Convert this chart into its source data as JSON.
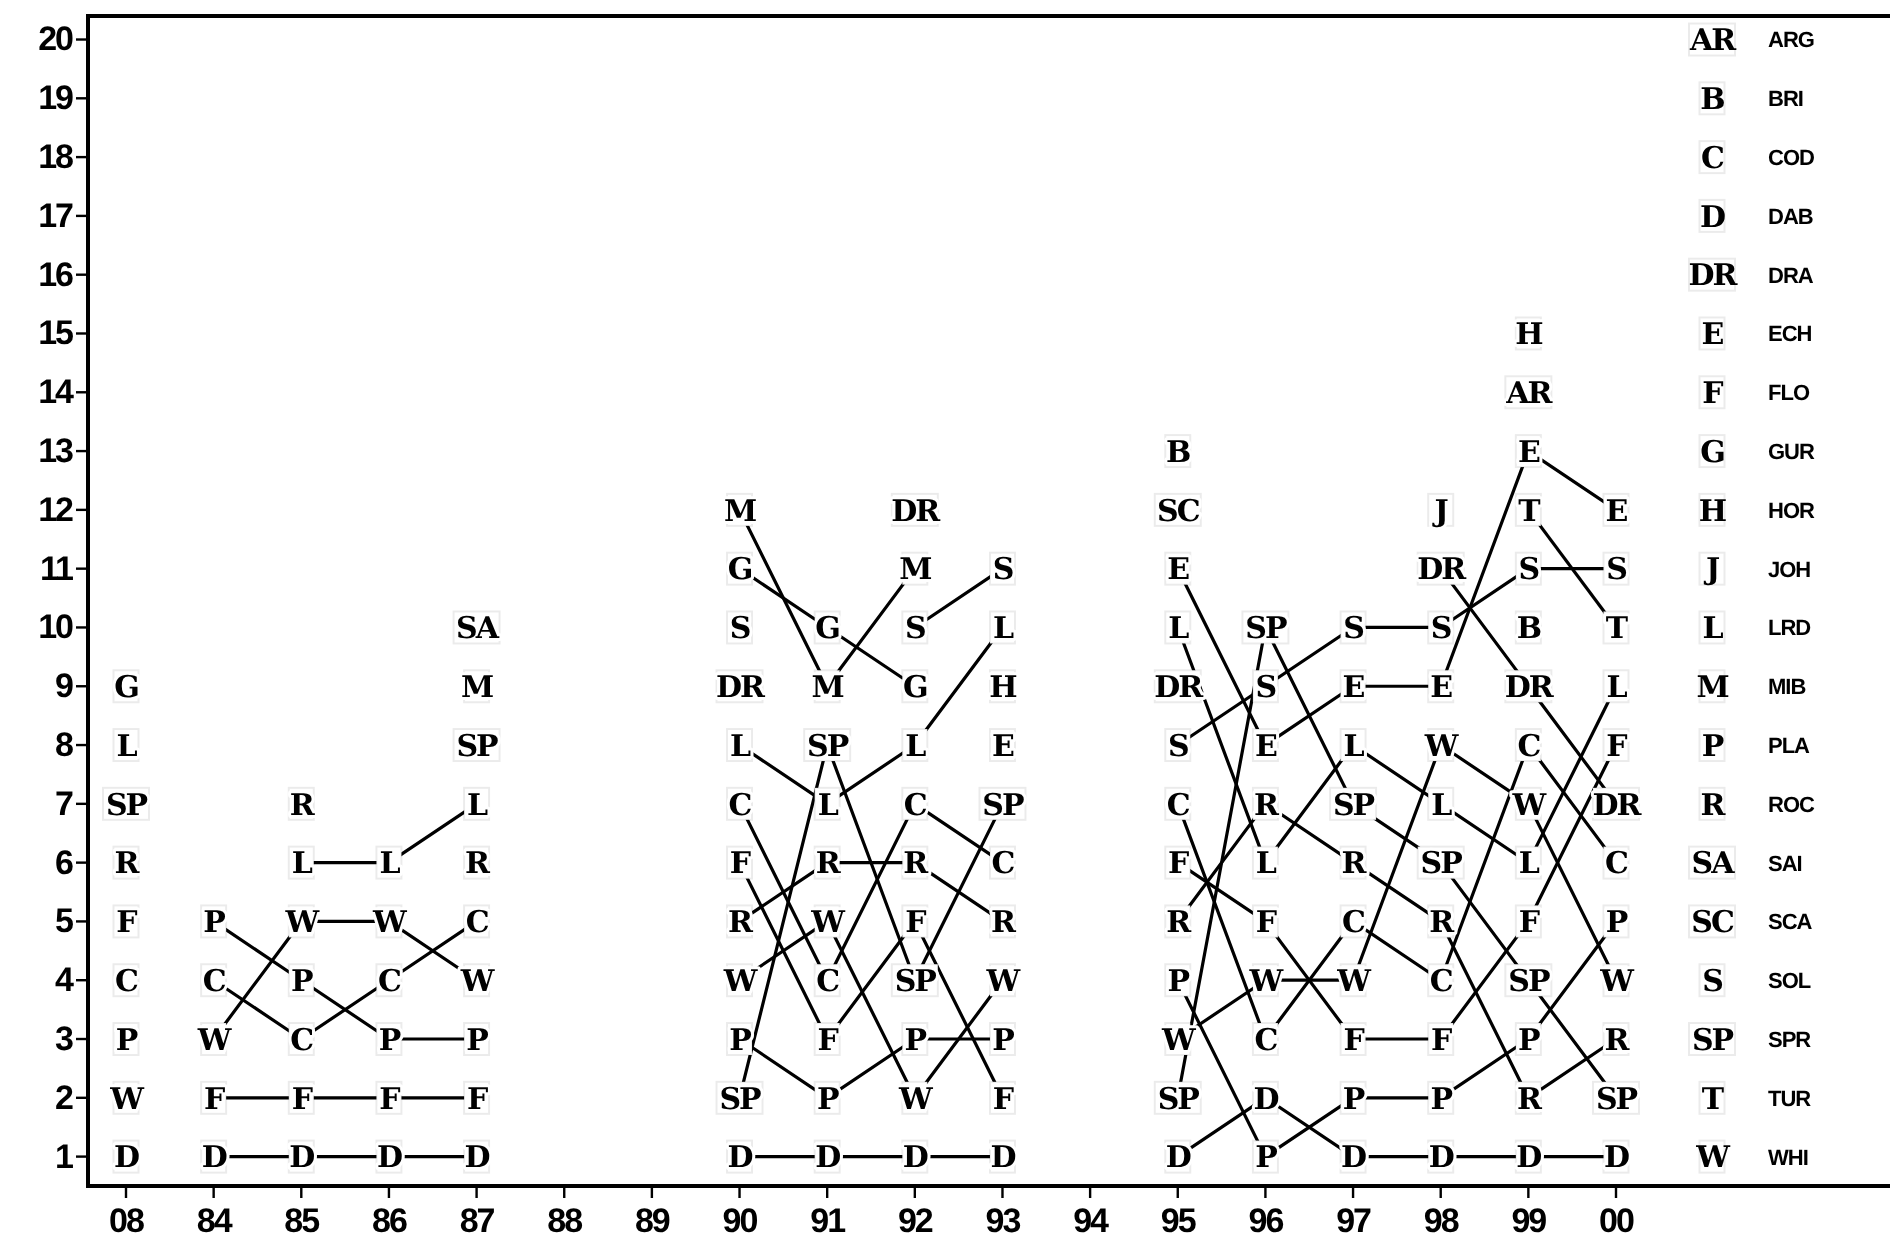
{
  "chart_data": {
    "type": "line",
    "categories": [
      "08",
      "84",
      "85",
      "86",
      "87",
      "88",
      "89",
      "90",
      "91",
      "92",
      "93",
      "94",
      "95",
      "96",
      "97",
      "98",
      "99",
      "00"
    ],
    "ylim": [
      0.5,
      20.4
    ],
    "yticks": [
      1,
      2,
      3,
      4,
      5,
      6,
      7,
      8,
      9,
      10,
      11,
      12,
      13,
      14,
      15,
      16,
      17,
      18,
      19,
      20
    ],
    "legend": "right",
    "marker": "square",
    "grid": false,
    "series": [
      {
        "name": "ARG",
        "color": "#000000",
        "values": [
          null,
          null,
          null,
          null,
          null,
          null,
          null,
          null,
          null,
          null,
          null,
          null,
          null,
          null,
          null,
          null,
          14,
          null
        ],
        "value_labels": [
          null,
          null,
          null,
          null,
          null,
          null,
          null,
          null,
          null,
          null,
          null,
          null,
          null,
          null,
          null,
          null,
          "AR",
          null
        ]
      },
      {
        "name": "BRI",
        "color": "#000000",
        "values": [
          null,
          null,
          null,
          null,
          null,
          null,
          null,
          null,
          null,
          null,
          null,
          null,
          13,
          null,
          null,
          null,
          10,
          null
        ],
        "value_labels": [
          null,
          null,
          null,
          null,
          null,
          null,
          null,
          null,
          null,
          null,
          null,
          null,
          "B",
          null,
          null,
          null,
          "B",
          null
        ]
      },
      {
        "name": "COD",
        "color": "#000000",
        "values": [
          null,
          4,
          3,
          4,
          5,
          null,
          null,
          7,
          4,
          7,
          6,
          null,
          7,
          3,
          5,
          4,
          8,
          6
        ],
        "value_labels": [
          null,
          "C",
          "C",
          "C",
          "C",
          null,
          null,
          "C",
          "C",
          "C",
          "C",
          null,
          "C",
          "C",
          "C",
          "C",
          "C",
          "C"
        ]
      },
      {
        "name": "DAB",
        "color": "#000000",
        "values": [
          null,
          1,
          1,
          1,
          1,
          null,
          null,
          1,
          1,
          1,
          1,
          null,
          1,
          2,
          1,
          1,
          1,
          1
        ],
        "value_labels": [
          null,
          "D",
          "D",
          "D",
          "D",
          null,
          null,
          "D",
          "D",
          "D",
          "D",
          null,
          "D",
          "D",
          "D",
          "D",
          "D",
          "D"
        ]
      },
      {
        "name": "DRA",
        "color": "#000000",
        "values": [
          null,
          null,
          null,
          null,
          null,
          null,
          null,
          9,
          null,
          12,
          null,
          null,
          9,
          null,
          null,
          11,
          9,
          7
        ],
        "value_labels": [
          null,
          null,
          null,
          null,
          null,
          null,
          null,
          "DR",
          null,
          "DR",
          null,
          null,
          "DR",
          null,
          null,
          "DR",
          "DR",
          "DR"
        ]
      },
      {
        "name": "ECH",
        "color": "#000000",
        "values": [
          null,
          null,
          null,
          null,
          null,
          null,
          null,
          null,
          null,
          null,
          8,
          null,
          11,
          8,
          9,
          9,
          13,
          12
        ],
        "value_labels": [
          null,
          null,
          null,
          null,
          null,
          null,
          null,
          null,
          null,
          null,
          "E",
          null,
          "E",
          "E",
          "E",
          "E",
          "E",
          "E"
        ]
      },
      {
        "name": "FLO",
        "color": "#000000",
        "values": [
          null,
          2,
          2,
          2,
          2,
          null,
          null,
          6,
          3,
          5,
          2,
          null,
          6,
          5,
          3,
          3,
          5,
          8
        ],
        "value_labels": [
          null,
          "F",
          "F",
          "F",
          "F",
          null,
          null,
          "F",
          "F",
          "F",
          "F",
          null,
          "F",
          "F",
          "F",
          "F",
          "F",
          "F"
        ]
      },
      {
        "name": "GUR",
        "color": "#000000",
        "values": [
          null,
          null,
          null,
          null,
          null,
          null,
          null,
          11,
          10,
          9,
          null,
          null,
          null,
          null,
          null,
          null,
          null,
          null
        ],
        "value_labels": [
          null,
          null,
          null,
          null,
          null,
          null,
          null,
          "G",
          "G",
          "G",
          null,
          null,
          null,
          null,
          null,
          null,
          null,
          null
        ]
      },
      {
        "name": "HOR",
        "color": "#000000",
        "values": [
          null,
          null,
          null,
          null,
          null,
          null,
          null,
          null,
          null,
          null,
          9,
          null,
          null,
          null,
          null,
          null,
          15,
          null
        ],
        "value_labels": [
          null,
          null,
          null,
          null,
          null,
          null,
          null,
          null,
          null,
          null,
          "H",
          null,
          null,
          null,
          null,
          null,
          "H",
          null
        ]
      },
      {
        "name": "JOH",
        "color": "#000000",
        "values": [
          null,
          null,
          null,
          null,
          null,
          null,
          null,
          null,
          null,
          null,
          null,
          null,
          null,
          null,
          null,
          12,
          null,
          null
        ],
        "value_labels": [
          null,
          null,
          null,
          null,
          null,
          null,
          null,
          null,
          null,
          null,
          null,
          null,
          null,
          null,
          null,
          "J",
          null,
          null
        ]
      },
      {
        "name": "LRD",
        "color": "#000000",
        "values": [
          null,
          null,
          6,
          6,
          7,
          null,
          null,
          8,
          7,
          8,
          10,
          null,
          10,
          6,
          8,
          7,
          6,
          9
        ],
        "value_labels": [
          null,
          null,
          "L",
          "L",
          "L",
          null,
          null,
          "L",
          "L",
          "L",
          "L",
          null,
          "L",
          "L",
          "L",
          "L",
          "L",
          "L"
        ]
      },
      {
        "name": "MIB",
        "color": "#000000",
        "values": [
          null,
          null,
          null,
          null,
          9,
          null,
          null,
          12,
          9,
          11,
          null,
          null,
          null,
          null,
          null,
          null,
          null,
          null
        ],
        "value_labels": [
          null,
          null,
          null,
          null,
          "M",
          null,
          null,
          "M",
          "M",
          "M",
          null,
          null,
          null,
          null,
          null,
          null,
          null,
          null
        ]
      },
      {
        "name": "PLA",
        "color": "#000000",
        "values": [
          null,
          5,
          4,
          3,
          3,
          null,
          null,
          3,
          2,
          3,
          3,
          null,
          4,
          1,
          2,
          2,
          3,
          5
        ],
        "value_labels": [
          null,
          "P",
          "P",
          "P",
          "P",
          null,
          null,
          "P",
          "P",
          "P",
          "P",
          null,
          "P",
          "P",
          "P",
          "P",
          "P",
          "P"
        ]
      },
      {
        "name": "ROC",
        "color": "#000000",
        "values": [
          null,
          null,
          7,
          null,
          6,
          null,
          null,
          5,
          6,
          6,
          5,
          null,
          5,
          7,
          6,
          5,
          2,
          3
        ],
        "value_labels": [
          null,
          null,
          "R",
          null,
          "R",
          null,
          null,
          "R",
          "R",
          "R",
          "R",
          null,
          "R",
          "R",
          "R",
          "R",
          "R",
          "R"
        ]
      },
      {
        "name": "SAI",
        "color": "#000000",
        "values": [
          null,
          null,
          null,
          null,
          10,
          null,
          null,
          null,
          null,
          null,
          null,
          null,
          null,
          null,
          null,
          null,
          null,
          null
        ],
        "value_labels": [
          null,
          null,
          null,
          null,
          "SA",
          null,
          null,
          null,
          null,
          null,
          null,
          null,
          null,
          null,
          null,
          null,
          null,
          null
        ]
      },
      {
        "name": "SCA",
        "color": "#000000",
        "values": [
          null,
          null,
          null,
          null,
          null,
          null,
          null,
          null,
          null,
          null,
          null,
          null,
          12,
          null,
          null,
          null,
          null,
          null
        ],
        "value_labels": [
          null,
          null,
          null,
          null,
          null,
          null,
          null,
          null,
          null,
          null,
          null,
          null,
          "SC",
          null,
          null,
          null,
          null,
          null
        ]
      },
      {
        "name": "SOL",
        "color": "#000000",
        "values": [
          null,
          null,
          null,
          null,
          null,
          null,
          null,
          10,
          null,
          10,
          11,
          null,
          8,
          9,
          10,
          10,
          11,
          11
        ],
        "value_labels": [
          null,
          null,
          null,
          null,
          null,
          null,
          null,
          "S",
          null,
          "S",
          "S",
          null,
          "S",
          "S",
          "S",
          "S",
          "S",
          "S"
        ]
      },
      {
        "name": "SPR",
        "color": "#000000",
        "values": [
          null,
          null,
          null,
          null,
          8,
          null,
          null,
          2,
          8,
          4,
          7,
          null,
          2,
          10,
          7,
          6,
          4,
          2
        ],
        "value_labels": [
          null,
          null,
          null,
          null,
          "SP",
          null,
          null,
          "SP",
          "SP",
          "SP",
          "SP",
          null,
          "SP",
          "SP",
          "SP",
          "SP",
          "SP",
          "SP"
        ]
      },
      {
        "name": "TUR",
        "color": "#000000",
        "values": [
          null,
          null,
          null,
          null,
          null,
          null,
          null,
          null,
          null,
          null,
          null,
          null,
          null,
          null,
          null,
          null,
          12,
          10
        ],
        "value_labels": [
          null,
          null,
          null,
          null,
          null,
          null,
          null,
          null,
          null,
          null,
          null,
          null,
          null,
          null,
          null,
          null,
          "T",
          "T"
        ]
      },
      {
        "name": "WHI",
        "color": "#000000",
        "values": [
          null,
          3,
          5,
          5,
          4,
          null,
          null,
          4,
          5,
          2,
          4,
          null,
          3,
          4,
          4,
          8,
          7,
          4
        ],
        "value_labels": [
          null,
          "W",
          "W",
          "W",
          "W",
          null,
          null,
          "W",
          "W",
          "W",
          "W",
          null,
          "W",
          "W",
          "W",
          "W",
          "W",
          "W"
        ]
      },
      {
        "type": "scatter",
        "color": "#000000",
        "values": [
          1,
          null,
          null,
          null,
          null,
          null,
          null,
          null,
          null,
          null,
          null,
          null,
          null,
          null,
          null,
          null,
          null,
          null
        ],
        "value_labels": [
          "D",
          null,
          null,
          null,
          null,
          null,
          null,
          null,
          null,
          null,
          null,
          null,
          null,
          null,
          null,
          null,
          null,
          null
        ]
      },
      {
        "type": "scatter",
        "color": "#000000",
        "values": [
          2,
          null,
          null,
          null,
          null,
          null,
          null,
          null,
          null,
          null,
          null,
          null,
          null,
          null,
          null,
          null,
          null,
          null
        ],
        "value_labels": [
          "W",
          null,
          null,
          null,
          null,
          null,
          null,
          null,
          null,
          null,
          null,
          null,
          null,
          null,
          null,
          null,
          null,
          null
        ]
      },
      {
        "type": "scatter",
        "color": "#000000",
        "values": [
          3,
          null,
          null,
          null,
          null,
          null,
          null,
          null,
          null,
          null,
          null,
          null,
          null,
          null,
          null,
          null,
          null,
          null
        ],
        "value_labels": [
          "P",
          null,
          null,
          null,
          null,
          null,
          null,
          null,
          null,
          null,
          null,
          null,
          null,
          null,
          null,
          null,
          null,
          null
        ]
      },
      {
        "type": "scatter",
        "color": "#000000",
        "values": [
          4,
          null,
          null,
          null,
          null,
          null,
          null,
          null,
          null,
          null,
          null,
          null,
          null,
          null,
          null,
          null,
          null,
          null
        ],
        "value_labels": [
          "C",
          null,
          null,
          null,
          null,
          null,
          null,
          null,
          null,
          null,
          null,
          null,
          null,
          null,
          null,
          null,
          null,
          null
        ]
      },
      {
        "type": "scatter",
        "color": "#000000",
        "values": [
          5,
          null,
          null,
          null,
          null,
          null,
          null,
          null,
          null,
          null,
          null,
          null,
          null,
          null,
          null,
          null,
          null,
          null
        ],
        "value_labels": [
          "F",
          null,
          null,
          null,
          null,
          null,
          null,
          null,
          null,
          null,
          null,
          null,
          null,
          null,
          null,
          null,
          null,
          null
        ]
      },
      {
        "type": "scatter",
        "color": "#000000",
        "values": [
          6,
          null,
          null,
          null,
          null,
          null,
          null,
          null,
          null,
          null,
          null,
          null,
          null,
          null,
          null,
          null,
          null,
          null
        ],
        "value_labels": [
          "R",
          null,
          null,
          null,
          null,
          null,
          null,
          null,
          null,
          null,
          null,
          null,
          null,
          null,
          null,
          null,
          null,
          null
        ]
      },
      {
        "type": "scatter",
        "color": "#000000",
        "values": [
          7,
          null,
          null,
          null,
          null,
          null,
          null,
          null,
          null,
          null,
          null,
          null,
          null,
          null,
          null,
          null,
          null,
          null
        ],
        "value_labels": [
          "SP",
          null,
          null,
          null,
          null,
          null,
          null,
          null,
          null,
          null,
          null,
          null,
          null,
          null,
          null,
          null,
          null,
          null
        ]
      },
      {
        "type": "scatter",
        "color": "#000000",
        "values": [
          8,
          null,
          null,
          null,
          null,
          null,
          null,
          null,
          null,
          null,
          null,
          null,
          null,
          null,
          null,
          null,
          null,
          null
        ],
        "value_labels": [
          "L",
          null,
          null,
          null,
          null,
          null,
          null,
          null,
          null,
          null,
          null,
          null,
          null,
          null,
          null,
          null,
          null,
          null
        ]
      },
      {
        "type": "scatter",
        "color": "#000000",
        "values": [
          9,
          null,
          null,
          null,
          null,
          null,
          null,
          null,
          null,
          null,
          null,
          null,
          null,
          null,
          null,
          null,
          null,
          null
        ],
        "value_labels": [
          "G",
          null,
          null,
          null,
          null,
          null,
          null,
          null,
          null,
          null,
          null,
          null,
          null,
          null,
          null,
          null,
          null,
          null
        ]
      }
    ]
  }
}
